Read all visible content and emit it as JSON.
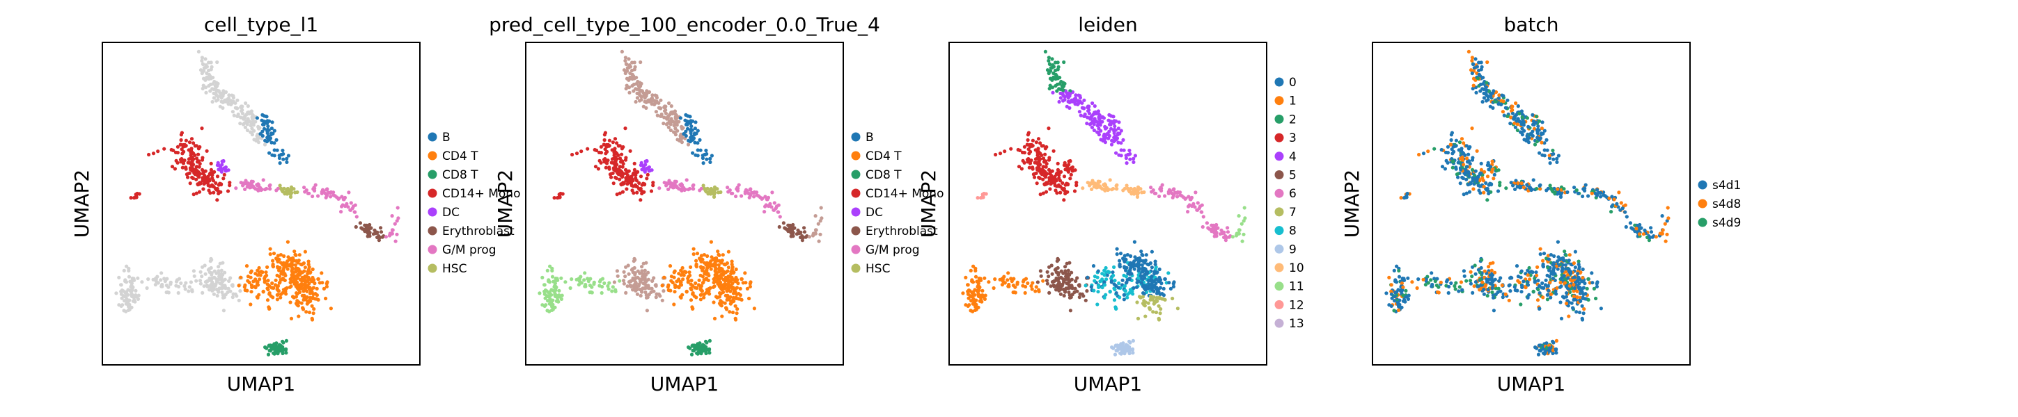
{
  "chart_data": [
    {
      "type": "scatter",
      "title": "cell_type_l1",
      "xlabel": "UMAP1",
      "ylabel": "UMAP2",
      "colors": [
        "#1f77b4",
        "#ff7f0e",
        "#279e68",
        "#d62728",
        "#aa40fc",
        "#8c564b",
        "#e377c2",
        "#b5bd61",
        "#d3d3d3"
      ],
      "legend": [
        "B",
        "CD4 T",
        "CD8 T",
        "CD14+ Mono",
        "DC",
        "Erythroblast",
        "G/M prog",
        "HSC"
      ],
      "grid": false
    },
    {
      "type": "scatter",
      "title": "pred_cell_type_100_encoder_0.0_True_4",
      "xlabel": "UMAP1",
      "ylabel": "UMAP2",
      "colors": [
        "#1f77b4",
        "#ff7f0e",
        "#279e68",
        "#d62728",
        "#aa40fc",
        "#8c564b",
        "#e377c2",
        "#b5bd61",
        "#c49c94",
        "#aec7e8",
        "#98df8a"
      ],
      "legend": [
        "B",
        "CD4 T",
        "CD8 T",
        "CD14+ Mono",
        "DC",
        "Erythroblast",
        "G/M prog",
        "HSC"
      ],
      "grid": false
    },
    {
      "type": "scatter",
      "title": "leiden",
      "xlabel": "UMAP1",
      "ylabel": "UMAP2",
      "colors": [
        "#1f77b4",
        "#ff7f0e",
        "#279e68",
        "#d62728",
        "#aa40fc",
        "#8c564b",
        "#e377c2",
        "#b5bd61",
        "#17becf",
        "#aec7e8",
        "#ffbb78",
        "#98df8a",
        "#ff9896",
        "#c5b0d5"
      ],
      "legend": [
        "0",
        "1",
        "2",
        "3",
        "4",
        "5",
        "6",
        "7",
        "8",
        "9",
        "10",
        "11",
        "12",
        "13"
      ],
      "grid": false
    },
    {
      "type": "scatter",
      "title": "batch",
      "xlabel": "UMAP1",
      "ylabel": "UMAP2",
      "colors": [
        "#1f77b4",
        "#ff7f0e",
        "#279e68"
      ],
      "legend": [
        "s4d1",
        "s4d8",
        "s4d9"
      ],
      "grid": false
    }
  ]
}
